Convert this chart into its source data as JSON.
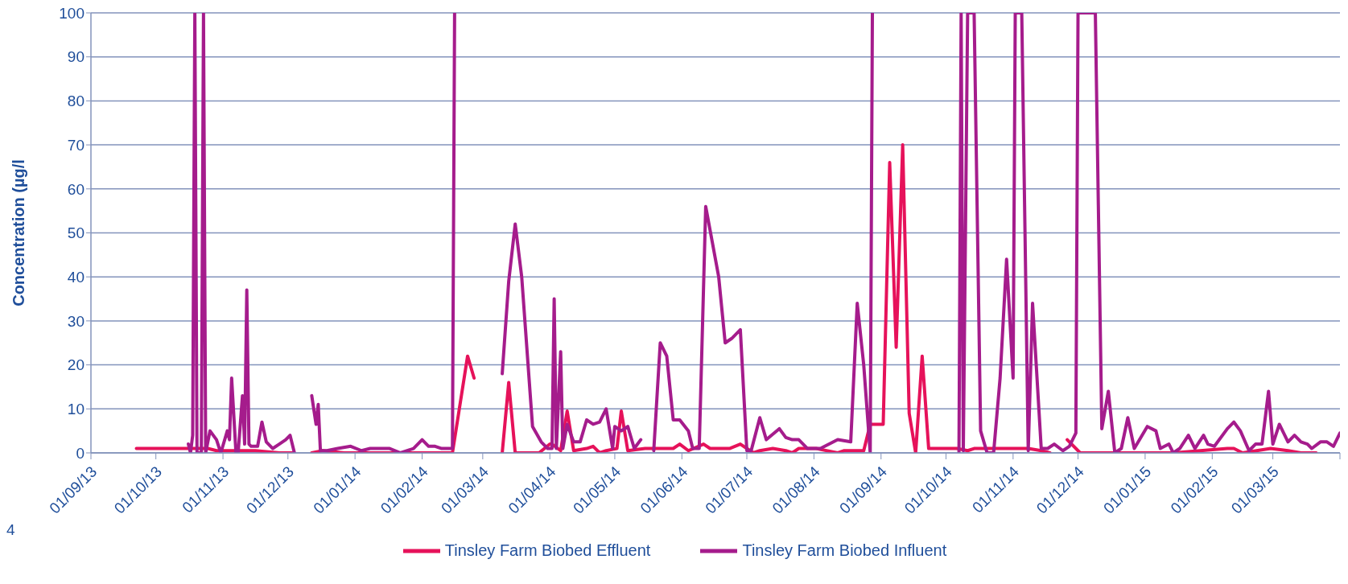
{
  "chart_data": {
    "type": "line",
    "ylabel": "Concentration (µg/l",
    "xlim": [
      "2013-09-01",
      "2015-04-01"
    ],
    "xticks": [
      {
        "value": "2013-09-01",
        "label": "01/09/13"
      },
      {
        "value": "2013-10-01",
        "label": "01/10/13"
      },
      {
        "value": "2013-11-01",
        "label": "01/11/13"
      },
      {
        "value": "2013-12-01",
        "label": "01/12/13"
      },
      {
        "value": "2014-01-01",
        "label": "01/01/14"
      },
      {
        "value": "2014-02-01",
        "label": "01/02/14"
      },
      {
        "value": "2014-03-01",
        "label": "01/03/14"
      },
      {
        "value": "2014-04-01",
        "label": "01/04/14"
      },
      {
        "value": "2014-05-01",
        "label": "01/05/14"
      },
      {
        "value": "2014-06-01",
        "label": "01/06/14"
      },
      {
        "value": "2014-07-01",
        "label": "01/07/14"
      },
      {
        "value": "2014-08-01",
        "label": "01/08/14"
      },
      {
        "value": "2014-09-01",
        "label": "01/09/14"
      },
      {
        "value": "2014-10-01",
        "label": "01/10/14"
      },
      {
        "value": "2014-11-01",
        "label": "01/11/14"
      },
      {
        "value": "2014-12-01",
        "label": "01/12/14"
      },
      {
        "value": "2015-01-01",
        "label": "01/01/15"
      },
      {
        "value": "2015-02-01",
        "label": "01/02/15"
      },
      {
        "value": "2015-03-01",
        "label": "01/03/15"
      },
      {
        "value": "2015-04-01",
        "label": null
      }
    ],
    "ylim": [
      0,
      100
    ],
    "yticks": [
      0,
      10,
      20,
      30,
      40,
      50,
      60,
      70,
      80,
      90,
      100
    ],
    "grid": "y",
    "legend": "bottom",
    "annotations": [
      "4"
    ],
    "series": [
      {
        "name": "Tinsley Farm Biobed Effluent",
        "color": "#e6125a",
        "x": [
          "2013-09-22",
          "2013-10-16",
          "2013-10-25",
          "2013-10-29",
          "2013-11-06",
          "2013-11-16",
          "2013-11-27",
          "2013-12-03",
          "2013-12-08",
          "2013-12-12",
          "2013-12-17",
          "2013-12-27",
          "2014-01-10",
          "2014-01-30",
          "2014-02-01",
          "2014-02-15",
          "2014-02-22",
          "2014-02-25",
          "2014-03-05",
          "2014-03-10",
          "2014-03-13",
          "2014-03-16",
          "2014-03-27",
          "2014-04-01",
          "2014-04-02",
          "2014-04-06",
          "2014-04-09",
          "2014-04-12",
          "2014-04-18",
          "2014-04-21",
          "2014-04-24",
          "2014-04-27",
          "2014-05-02",
          "2014-05-04",
          "2014-05-07",
          "2014-05-15",
          "2014-05-28",
          "2014-05-31",
          "2014-06-04",
          "2014-06-11",
          "2014-06-14",
          "2014-06-23",
          "2014-06-28",
          "2014-07-01",
          "2014-07-04",
          "2014-07-07",
          "2014-07-13",
          "2014-07-19",
          "2014-07-22",
          "2014-07-25",
          "2014-08-02",
          "2014-08-12",
          "2014-08-15",
          "2014-08-24",
          "2014-08-27",
          "2014-09-02",
          "2014-09-05",
          "2014-09-08",
          "2014-09-11",
          "2014-09-14",
          "2014-09-17",
          "2014-09-20",
          "2014-09-23",
          "2014-10-06",
          "2014-10-11",
          "2014-10-14",
          "2014-11-08",
          "2014-11-14",
          "2014-11-18",
          "2014-11-22",
          "2014-11-26",
          "2014-12-02",
          "2014-12-24",
          "2015-01-14",
          "2015-02-08",
          "2015-02-11",
          "2015-02-15",
          "2015-02-28",
          "2015-03-08",
          "2015-03-14",
          "2015-03-21"
        ],
        "values": [
          1,
          1,
          1,
          0.5,
          0.5,
          0.5,
          0,
          0,
          null,
          0,
          0.5,
          0,
          0,
          0,
          0,
          0,
          22,
          17,
          null,
          0,
          16,
          0,
          0,
          2,
          2,
          0.5,
          9.5,
          0.5,
          1,
          1.5,
          0,
          0.5,
          1,
          9.5,
          0.5,
          1,
          1,
          2,
          0.5,
          2,
          1,
          1,
          2,
          1,
          0,
          0.5,
          1,
          0.5,
          0,
          1,
          1,
          0,
          0.5,
          0.5,
          6.5,
          6.5,
          66,
          24,
          70,
          9,
          0,
          22,
          1,
          1,
          0.5,
          1,
          1,
          0.5,
          0,
          null,
          3,
          0,
          0,
          0,
          1,
          1,
          0,
          1,
          0.5,
          0,
          0
        ]
      },
      {
        "name": "Tinsley Farm Biobed Influent",
        "color": "#a51c8c",
        "x": [
          "2013-10-16",
          "2013-10-17",
          "2013-10-18",
          "2013-10-19",
          "2013-10-20",
          "2013-10-22",
          "2013-10-23",
          "2013-10-24",
          "2013-10-26",
          "2013-10-29",
          "2013-10-31",
          "2013-11-03",
          "2013-11-04",
          "2013-11-05",
          "2013-11-07",
          "2013-11-08",
          "2013-11-10",
          "2013-11-11",
          "2013-11-12",
          "2013-11-13",
          "2013-11-14",
          "2013-11-17",
          "2013-11-19",
          "2013-11-21",
          "2013-11-24",
          "2013-11-27",
          "2013-11-30",
          "2013-12-02",
          "2013-12-04",
          "2013-12-08",
          "2013-12-12",
          "2013-12-14",
          "2013-12-15",
          "2013-12-16",
          "2013-12-19",
          "2013-12-24",
          "2013-12-30",
          "2014-01-04",
          "2014-01-08",
          "2014-01-17",
          "2014-01-22",
          "2014-01-28",
          "2014-02-01",
          "2014-02-04",
          "2014-02-07",
          "2014-02-10",
          "2014-02-15",
          "2014-02-16",
          "2014-02-28",
          "2014-03-10",
          "2014-03-13",
          "2014-03-16",
          "2014-03-19",
          "2014-03-24",
          "2014-03-28",
          "2014-03-31",
          "2014-04-02",
          "2014-04-03",
          "2014-04-04",
          "2014-04-06",
          "2014-04-07",
          "2014-04-09",
          "2014-04-12",
          "2014-04-15",
          "2014-04-18",
          "2014-04-21",
          "2014-04-24",
          "2014-04-27",
          "2014-04-30",
          "2014-05-01",
          "2014-05-04",
          "2014-05-07",
          "2014-05-10",
          "2014-05-13",
          "2014-05-16",
          "2014-05-19",
          "2014-05-22",
          "2014-05-25",
          "2014-05-28",
          "2014-05-31",
          "2014-06-04",
          "2014-06-06",
          "2014-06-09",
          "2014-06-12",
          "2014-06-15",
          "2014-06-18",
          "2014-06-21",
          "2014-06-24",
          "2014-06-28",
          "2014-07-01",
          "2014-07-03",
          "2014-07-07",
          "2014-07-10",
          "2014-07-16",
          "2014-07-19",
          "2014-07-22",
          "2014-07-25",
          "2014-07-29",
          "2014-08-04",
          "2014-08-12",
          "2014-08-18",
          "2014-08-21",
          "2014-08-24",
          "2014-08-27",
          "2014-08-28",
          "2014-09-15",
          "2014-10-07",
          "2014-10-08",
          "2014-10-09",
          "2014-10-11",
          "2014-10-14",
          "2014-10-17",
          "2014-10-20",
          "2014-10-23",
          "2014-10-26",
          "2014-10-29",
          "2014-11-01",
          "2014-11-02",
          "2014-11-05",
          "2014-11-08",
          "2014-11-10",
          "2014-11-14",
          "2014-11-17",
          "2014-11-20",
          "2014-11-24",
          "2014-11-27",
          "2014-11-30",
          "2014-12-01",
          "2014-12-09",
          "2014-12-12",
          "2014-12-15",
          "2014-12-18",
          "2014-12-21",
          "2014-12-24",
          "2014-12-27",
          "2015-01-02",
          "2015-01-06",
          "2015-01-08",
          "2015-01-12",
          "2015-01-14",
          "2015-01-17",
          "2015-01-21",
          "2015-01-24",
          "2015-01-28",
          "2015-01-30",
          "2015-02-02",
          "2015-02-08",
          "2015-02-11",
          "2015-02-14",
          "2015-02-18",
          "2015-02-21",
          "2015-02-24",
          "2015-02-27",
          "2015-03-01",
          "2015-03-04",
          "2015-03-08",
          "2015-03-11",
          "2015-03-14",
          "2015-03-17",
          "2015-03-19",
          "2015-03-23",
          "2015-03-26",
          "2015-03-29",
          "2015-04-01"
        ],
        "values": [
          2,
          0,
          4,
          100,
          0,
          0,
          100,
          0,
          5,
          3,
          0,
          5,
          3,
          17,
          0,
          0,
          13,
          2,
          37,
          2,
          1.5,
          1.5,
          7,
          2.5,
          1,
          2,
          3,
          4,
          0,
          null,
          13,
          6.5,
          11,
          0.5,
          0.5,
          1,
          1.5,
          0.5,
          1,
          1,
          0,
          1,
          3,
          1.5,
          1.5,
          1,
          1,
          100,
          null,
          18,
          39,
          52,
          40,
          6,
          2.5,
          1,
          1,
          35,
          1,
          23,
          1,
          6.5,
          2.5,
          2.5,
          7.5,
          6.5,
          7,
          10,
          1,
          6,
          5,
          6,
          1,
          3,
          null,
          0.5,
          25,
          22,
          7.5,
          7.5,
          5,
          1,
          1,
          56,
          48,
          40,
          25,
          26,
          28,
          0.5,
          0.5,
          8,
          3,
          5.5,
          3.5,
          3,
          3,
          1,
          1,
          3,
          2.5,
          34,
          20,
          0,
          100,
          null,
          0,
          100,
          0.5,
          100,
          100,
          5,
          0,
          0,
          17,
          44,
          17,
          100,
          100,
          0.5,
          34,
          1,
          1,
          2,
          0.5,
          1.5,
          4.5,
          100,
          100,
          5.5,
          14,
          0,
          1,
          8,
          1,
          6,
          5,
          1,
          2,
          0,
          1,
          4,
          1,
          4,
          2,
          1.5,
          5.5,
          7,
          5,
          0.5,
          2,
          2,
          14,
          2,
          6.5,
          2.5,
          4,
          2.5,
          2,
          1,
          2.5,
          2.5,
          1.5,
          4.5
        ]
      }
    ]
  }
}
